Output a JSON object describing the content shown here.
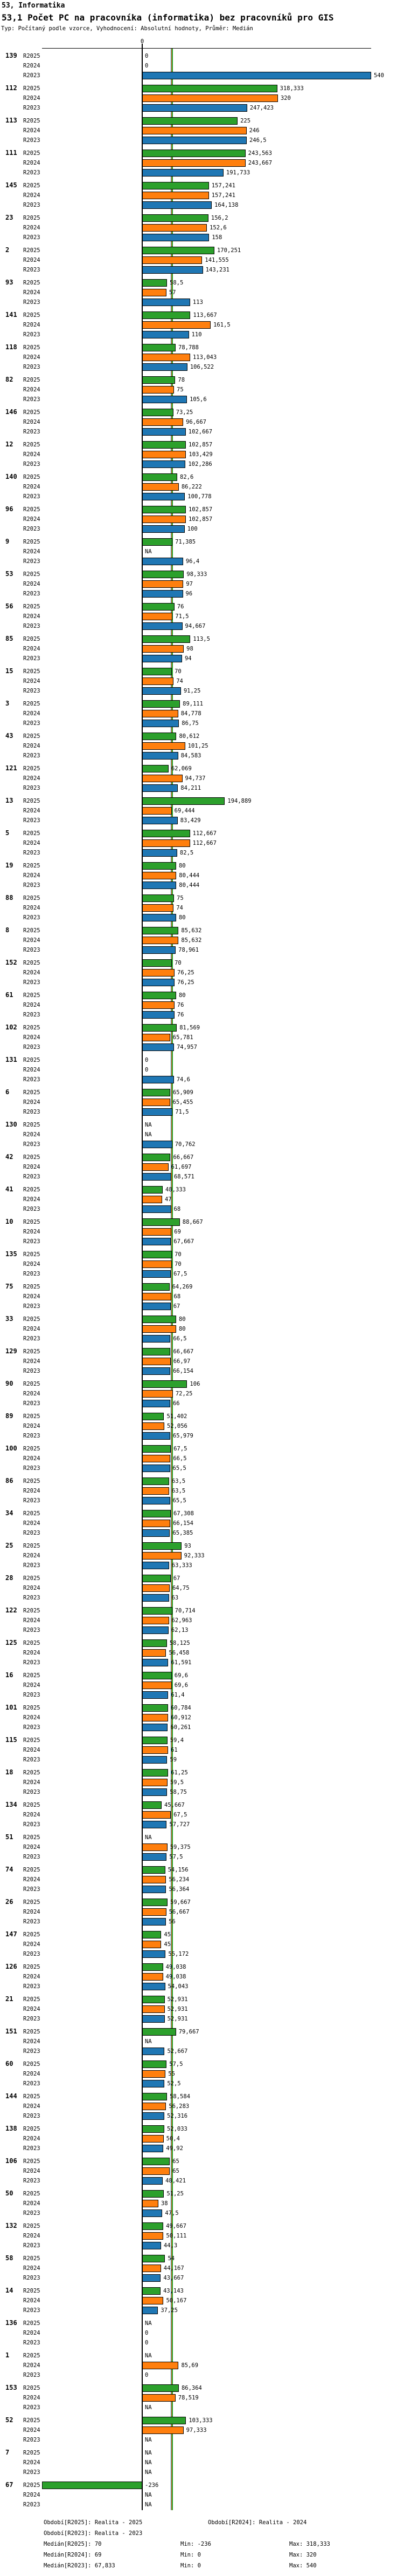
{
  "header": {
    "section": "53, Informatika",
    "title": "53,1 Počet PC na pracovníka (informatika) bez pracovníků pro GIS",
    "subtitle": "Typ: Počítaný podle vzorce, Vyhodnocení: Absolutní hodnoty, Průměr: Medián"
  },
  "chart_data": {
    "type": "bar",
    "orientation": "horizontal",
    "title": "53,1 Počet PC na pracovníka (informatika) bez pracovníků pro GIS",
    "x_axis": {
      "zero_label": "0",
      "min": -236,
      "max": 540
    },
    "na_label": "NA",
    "series": [
      {
        "name": "R2025",
        "period": "Realita - 2025",
        "color": "#2ca02c",
        "median": 70,
        "min": -236,
        "max": 318.333
      },
      {
        "name": "R2024",
        "period": "Realita - 2024",
        "color": "#ff7f0e",
        "median": 69,
        "min": 0,
        "max": 320
      },
      {
        "name": "R2023",
        "period": "Realita - 2023",
        "color": "#1f77b4",
        "median": 67.833,
        "min": 0,
        "max": 540
      }
    ],
    "groups": [
      {
        "id": "139",
        "values": [
          0,
          0,
          540
        ]
      },
      {
        "id": "112",
        "values": [
          318.333,
          320,
          247.423
        ]
      },
      {
        "id": "113",
        "values": [
          225,
          246,
          246.5
        ]
      },
      {
        "id": "111",
        "values": [
          243.563,
          243.667,
          191.733
        ]
      },
      {
        "id": "145",
        "values": [
          157.241,
          157.241,
          164.138
        ]
      },
      {
        "id": "23",
        "values": [
          156.2,
          152.6,
          158
        ]
      },
      {
        "id": "2",
        "values": [
          170.251,
          141.555,
          143.231
        ]
      },
      {
        "id": "93",
        "values": [
          58.5,
          57,
          113
        ]
      },
      {
        "id": "141",
        "values": [
          113.667,
          161.5,
          110
        ]
      },
      {
        "id": "118",
        "values": [
          78.788,
          113.043,
          106.522
        ]
      },
      {
        "id": "82",
        "values": [
          78,
          75,
          105.6
        ]
      },
      {
        "id": "146",
        "values": [
          73.25,
          96.667,
          102.667
        ]
      },
      {
        "id": "12",
        "values": [
          102.857,
          103.429,
          102.286
        ]
      },
      {
        "id": "140",
        "values": [
          82.6,
          86.222,
          100.778
        ]
      },
      {
        "id": "96",
        "values": [
          102.857,
          102.857,
          100
        ]
      },
      {
        "id": "9",
        "values": [
          71.385,
          null,
          96.4
        ]
      },
      {
        "id": "53",
        "values": [
          98.333,
          97,
          96
        ]
      },
      {
        "id": "56",
        "values": [
          76,
          71.5,
          94.667
        ]
      },
      {
        "id": "85",
        "values": [
          113.5,
          98,
          94
        ]
      },
      {
        "id": "15",
        "values": [
          70,
          74,
          91.25
        ]
      },
      {
        "id": "3",
        "values": [
          89.111,
          84.778,
          86.75
        ]
      },
      {
        "id": "43",
        "values": [
          80.612,
          101.25,
          84.583
        ]
      },
      {
        "id": "121",
        "values": [
          62.069,
          94.737,
          84.211
        ]
      },
      {
        "id": "13",
        "values": [
          194.889,
          69.444,
          83.429
        ]
      },
      {
        "id": "5",
        "values": [
          112.667,
          112.667,
          82.5
        ]
      },
      {
        "id": "19",
        "values": [
          80,
          80.444,
          80.444
        ]
      },
      {
        "id": "88",
        "values": [
          75,
          74,
          80
        ]
      },
      {
        "id": "8",
        "values": [
          85.632,
          85.632,
          78.961
        ]
      },
      {
        "id": "152",
        "values": [
          70,
          76.25,
          76.25
        ]
      },
      {
        "id": "61",
        "values": [
          80,
          76,
          76
        ]
      },
      {
        "id": "102",
        "values": [
          81.569,
          65.781,
          74.957
        ]
      },
      {
        "id": "131",
        "values": [
          0,
          0,
          74.6
        ]
      },
      {
        "id": "6",
        "values": [
          65.909,
          65.455,
          71.5
        ]
      },
      {
        "id": "130",
        "values": [
          null,
          null,
          70.762
        ]
      },
      {
        "id": "42",
        "values": [
          66.667,
          61.697,
          68.571
        ]
      },
      {
        "id": "41",
        "values": [
          48.333,
          47,
          68
        ]
      },
      {
        "id": "10",
        "values": [
          88.667,
          69,
          67.667
        ]
      },
      {
        "id": "135",
        "values": [
          70,
          70,
          67.5
        ]
      },
      {
        "id": "75",
        "values": [
          64.269,
          68,
          67
        ]
      },
      {
        "id": "33",
        "values": [
          80,
          80,
          66.5
        ]
      },
      {
        "id": "129",
        "values": [
          66.667,
          66.97,
          66.154
        ]
      },
      {
        "id": "90",
        "values": [
          106,
          72.25,
          66
        ]
      },
      {
        "id": "89",
        "values": [
          51.402,
          52.056,
          65.979
        ]
      },
      {
        "id": "100",
        "values": [
          67.5,
          66.5,
          65.5
        ]
      },
      {
        "id": "86",
        "values": [
          63.5,
          63.5,
          65.5
        ]
      },
      {
        "id": "34",
        "values": [
          67.308,
          66.154,
          65.385
        ]
      },
      {
        "id": "25",
        "values": [
          93,
          92.333,
          63.333
        ]
      },
      {
        "id": "28",
        "values": [
          67,
          64.75,
          63
        ]
      },
      {
        "id": "122",
        "values": [
          70.714,
          62.963,
          62.13
        ]
      },
      {
        "id": "125",
        "values": [
          58.125,
          56.458,
          61.591
        ]
      },
      {
        "id": "16",
        "values": [
          69.6,
          69.6,
          61.4
        ]
      },
      {
        "id": "101",
        "values": [
          60.784,
          60.912,
          60.261
        ]
      },
      {
        "id": "115",
        "values": [
          59.4,
          61,
          59
        ]
      },
      {
        "id": "18",
        "values": [
          61.25,
          59.5,
          58.75
        ]
      },
      {
        "id": "134",
        "values": [
          45.667,
          67.5,
          57.727
        ]
      },
      {
        "id": "51",
        "values": [
          null,
          59.375,
          57.5
        ]
      },
      {
        "id": "74",
        "values": [
          54.156,
          56.234,
          56.364
        ]
      },
      {
        "id": "26",
        "values": [
          59.667,
          56.667,
          56
        ]
      },
      {
        "id": "147",
        "values": [
          45,
          45,
          55.172
        ]
      },
      {
        "id": "126",
        "values": [
          49.038,
          49.038,
          54.043
        ]
      },
      {
        "id": "21",
        "values": [
          52.931,
          52.931,
          52.931
        ]
      },
      {
        "id": "151",
        "values": [
          79.667,
          null,
          52.667
        ]
      },
      {
        "id": "60",
        "values": [
          57.5,
          55,
          52.5
        ]
      },
      {
        "id": "144",
        "values": [
          58.584,
          56.283,
          52.316
        ]
      },
      {
        "id": "138",
        "values": [
          52.033,
          50.4,
          49.92
        ]
      },
      {
        "id": "106",
        "values": [
          65,
          65,
          48.421
        ]
      },
      {
        "id": "50",
        "values": [
          51.25,
          38,
          47.5
        ]
      },
      {
        "id": "132",
        "values": [
          49.667,
          50.111,
          44.3
        ]
      },
      {
        "id": "58",
        "values": [
          54,
          44.167,
          43.667
        ]
      },
      {
        "id": "14",
        "values": [
          43.143,
          50.167,
          37.25
        ]
      },
      {
        "id": "136",
        "values": [
          null,
          0,
          0
        ]
      },
      {
        "id": "1",
        "values": [
          null,
          85.69,
          0
        ]
      },
      {
        "id": "153",
        "values": [
          86.364,
          78.519,
          null
        ]
      },
      {
        "id": "52",
        "values": [
          103.333,
          97.333,
          null
        ]
      },
      {
        "id": "7",
        "values": [
          null,
          null,
          null
        ]
      },
      {
        "id": "67",
        "values": [
          -236,
          null,
          null
        ]
      }
    ]
  },
  "footer": {
    "lines": [
      [
        "Období[R2025]: Realita - 2025",
        "Období[R2024]: Realita - 2024"
      ],
      [
        "Období[R2023]: Realita - 2023"
      ],
      [
        "Medián[R2025]: 70",
        "Min: -236",
        "Max: 318,333"
      ],
      [
        "Medián[R2024]: 69",
        "Min: 0",
        "Max: 320"
      ],
      [
        "Medián[R2023]: 67,833",
        "Min: 0",
        "Max: 540"
      ]
    ]
  }
}
